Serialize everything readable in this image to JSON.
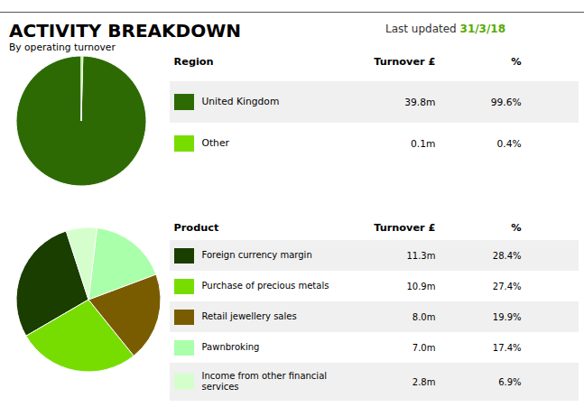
{
  "chart_data": [
    {
      "type": "pie",
      "title": "ACTIVITY BREAKDOWN",
      "subtitle": "By operating turnover",
      "annotations": [
        {
          "text": "Last updated ",
          "color": "#333333"
        },
        {
          "text": "31/3/18",
          "color": "#55aa00"
        }
      ],
      "categories": [
        "United Kingdom",
        "Other"
      ],
      "values": [
        99.6,
        0.4
      ],
      "value_labels": [
        "99.6%",
        "0.4%"
      ],
      "colors": [
        "#2d6a04",
        "#66ff00"
      ],
      "table_header": [
        "Region",
        "Turnover £",
        "%"
      ],
      "turnover": [
        39.8,
        0.1
      ],
      "turnover_labels": [
        "39.8m",
        "0.1m"
      ],
      "swatch_colors": [
        "#2d6a04",
        "#77dd00"
      ],
      "row_colors": [
        "#f0f0f0",
        "#ffffff"
      ]
    },
    {
      "type": "pie",
      "categories": [
        "Foreign currency margin",
        "Purchase of precious metals",
        "Retail jewellery sales",
        "Pawnbroking",
        "Income from other financial\nservices"
      ],
      "values": [
        28.4,
        27.4,
        19.9,
        17.4,
        6.9
      ],
      "value_labels": [
        "28.4%",
        "27.4%",
        "19.9%",
        "17.4%",
        "6.9%"
      ],
      "colors": [
        "#1a3d00",
        "#77dd00",
        "#7a5c00",
        "#aaffaa",
        "#d4ffcc"
      ],
      "table_header": [
        "Product",
        "Turnover £",
        "%"
      ],
      "turnover": [
        11.3,
        10.9,
        8.0,
        7.0,
        2.8
      ],
      "turnover_labels": [
        "11.3m",
        "10.9m",
        "8.0m",
        "7.0m",
        "2.8m"
      ],
      "swatch_colors": [
        "#1a3d00",
        "#77dd00",
        "#7a5c00",
        "#aaffaa",
        "#d4ffcc"
      ],
      "row_colors": [
        "#f0f0f0",
        "#ffffff"
      ]
    }
  ]
}
